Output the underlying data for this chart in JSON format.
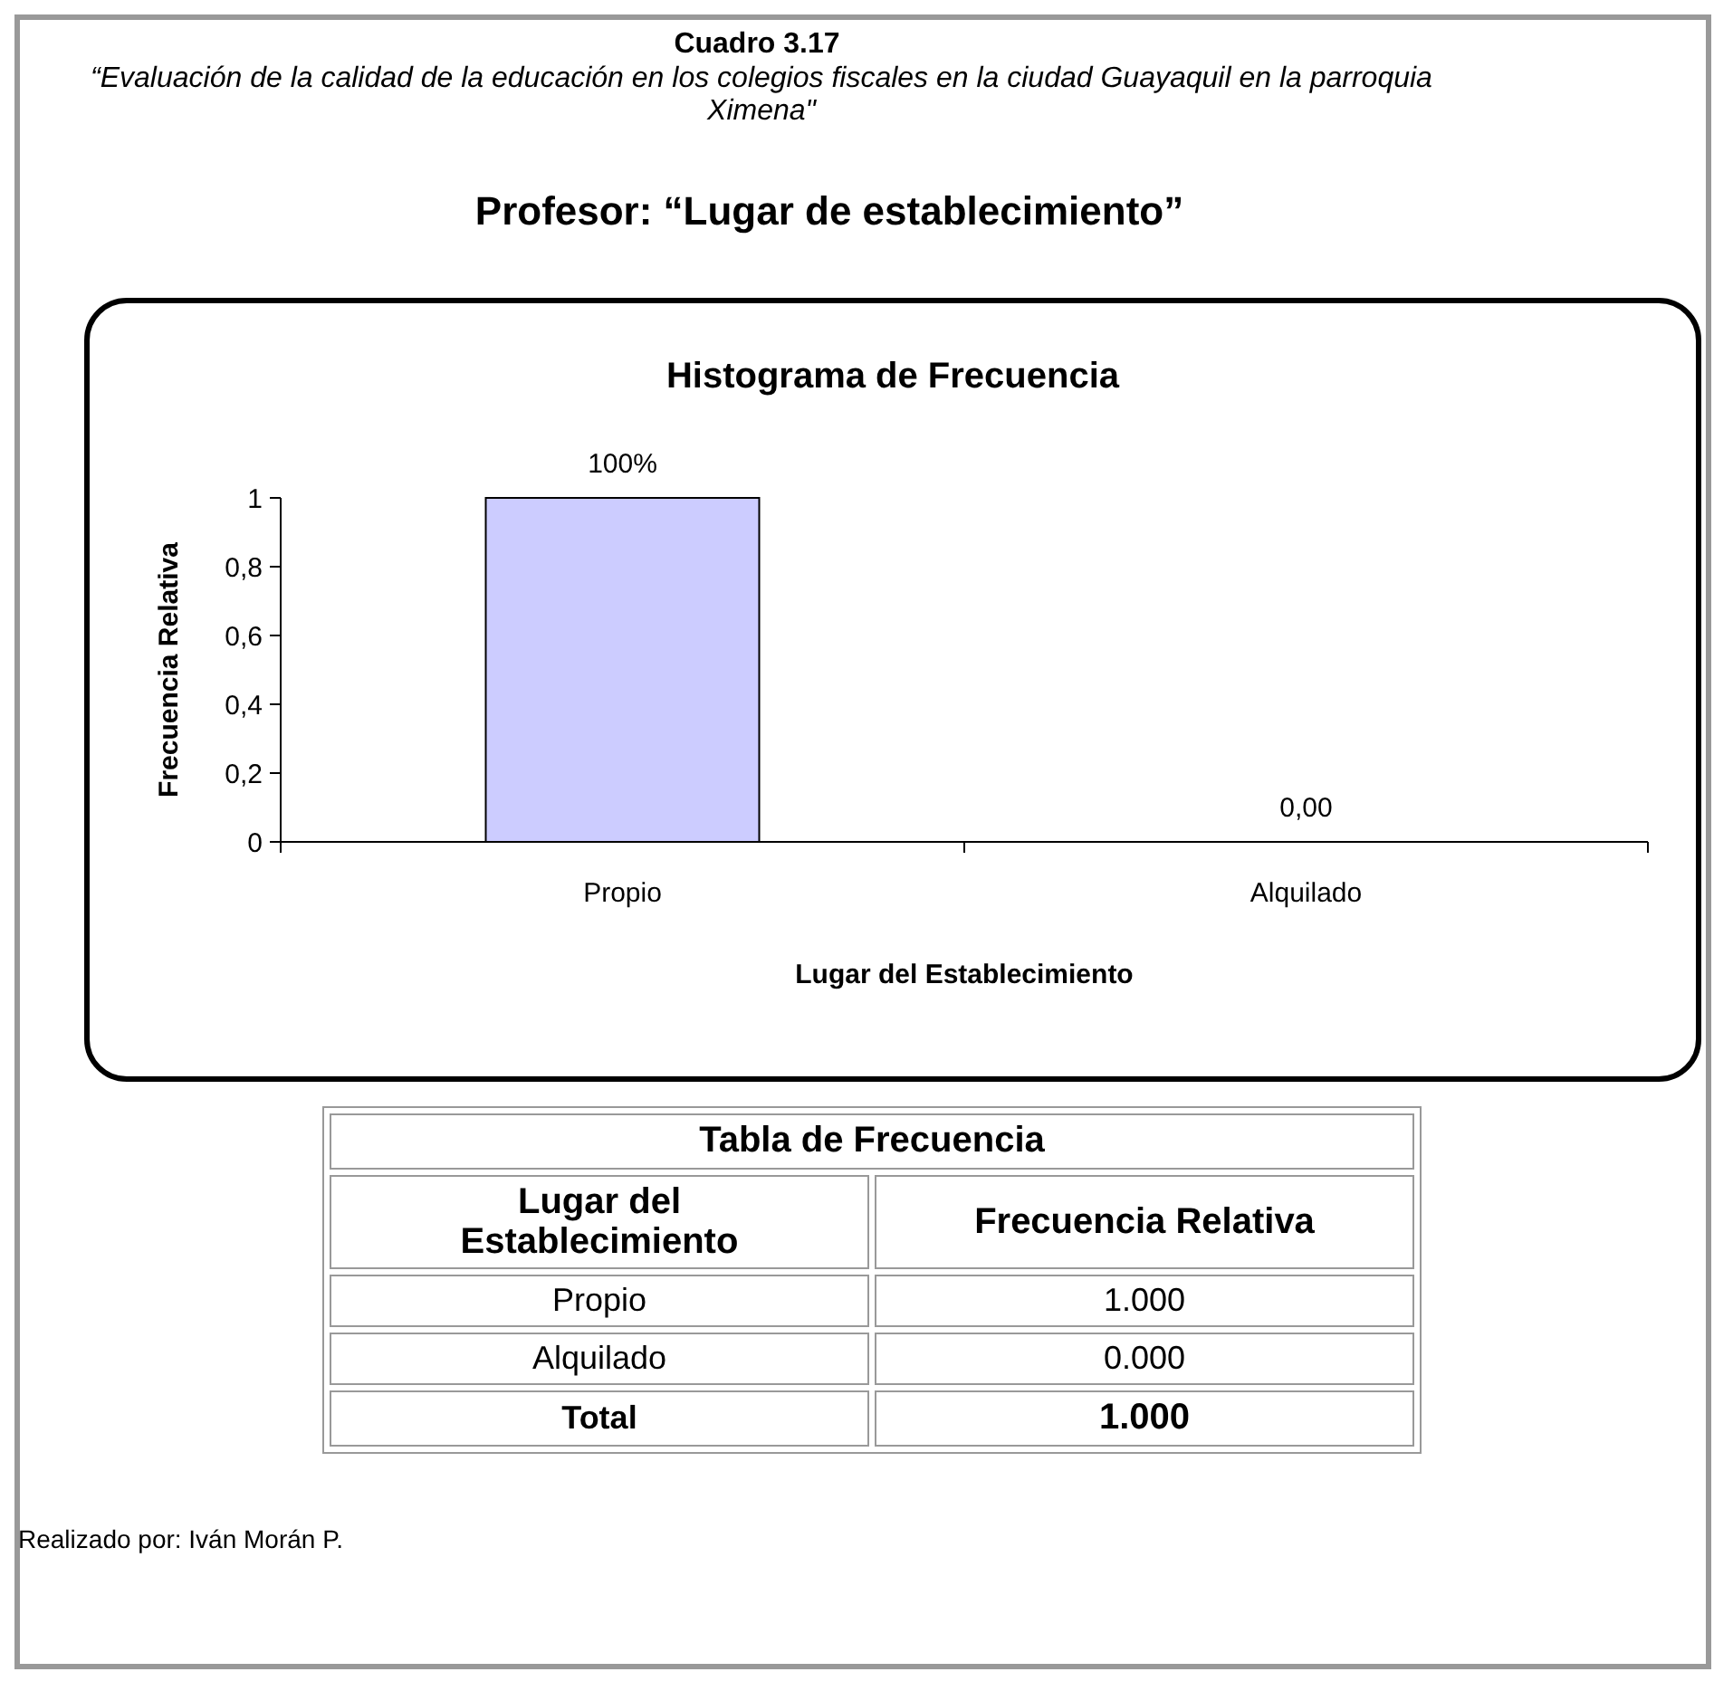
{
  "chart_data": {
    "type": "bar",
    "title": "Histograma de Frecuencia",
    "xlabel": "Lugar del Establecimiento",
    "ylabel": "Frecuencia Relativa",
    "categories": [
      "Propio",
      "Alquilado"
    ],
    "values": [
      1,
      0
    ],
    "value_labels": [
      "100%",
      "0,00"
    ],
    "color": "#ccccff",
    "ylim": [
      0,
      1
    ],
    "yticks": [
      0,
      {
        "value": 0.2,
        "label": "0,2"
      },
      {
        "value": 0.4,
        "label": "0,4"
      },
      {
        "value": 0.6,
        "label": "0,6"
      },
      {
        "value": 0.8,
        "label": "0,8"
      },
      1
    ],
    "grid": false,
    "annotations": [
      "Cuadro 3.17",
      "“Evaluación de la calidad de la educación en los colegios fiscales en la ciudad Guayaquil en la parroquia Ximena\"",
      "Profesor: “Lugar de establecimiento”",
      "Tabla de Frecuencia",
      "Lugar del Establecimiento",
      "Frecuencia Relativa",
      "Propio",
      "1.000",
      "Alquilado",
      "0.000",
      "Total",
      "1.000",
      "Realizado por: Iván Morán P."
    ]
  }
}
